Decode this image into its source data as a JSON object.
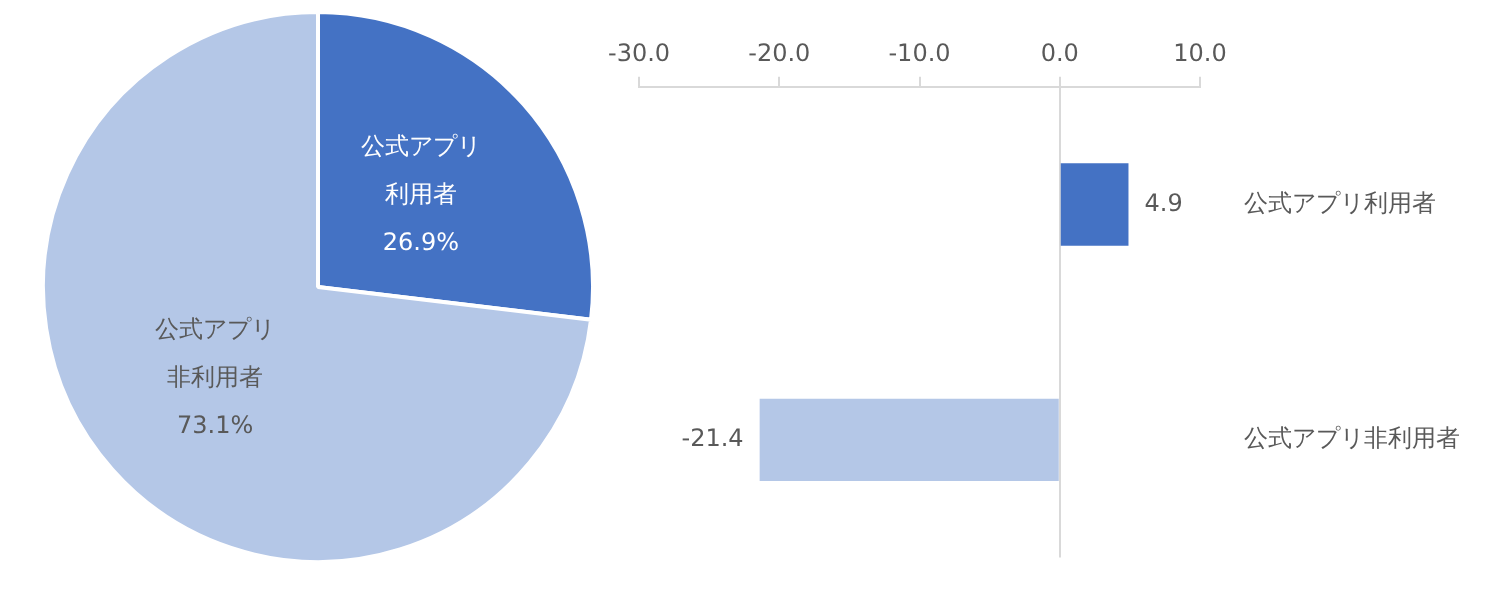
{
  "chart_data": [
    {
      "type": "pie",
      "categories": [
        "公式アプリ利用者",
        "公式アプリ非利用者"
      ],
      "values": [
        26.9,
        73.1
      ],
      "colors": [
        "#4472c4",
        "#b4c7e7"
      ],
      "value_labels": [
        "26.9%",
        "73.1%"
      ]
    },
    {
      "type": "bar",
      "orientation": "horizontal",
      "categories": [
        "公式アプリ利用者",
        "公式アプリ非利用者"
      ],
      "values": [
        4.9,
        -21.4
      ],
      "colors": [
        "#4472c4",
        "#b4c7e7"
      ],
      "xlim": [
        -30,
        10
      ],
      "xticks": [
        {
          "value": -30,
          "label": "-30.0"
        },
        {
          "value": -20,
          "label": "-20.0"
        },
        {
          "value": -10,
          "label": "-10.0"
        },
        {
          "value": 0,
          "label": "0.0"
        },
        {
          "value": 10,
          "label": "10.0"
        }
      ],
      "data_labels": true
    }
  ]
}
